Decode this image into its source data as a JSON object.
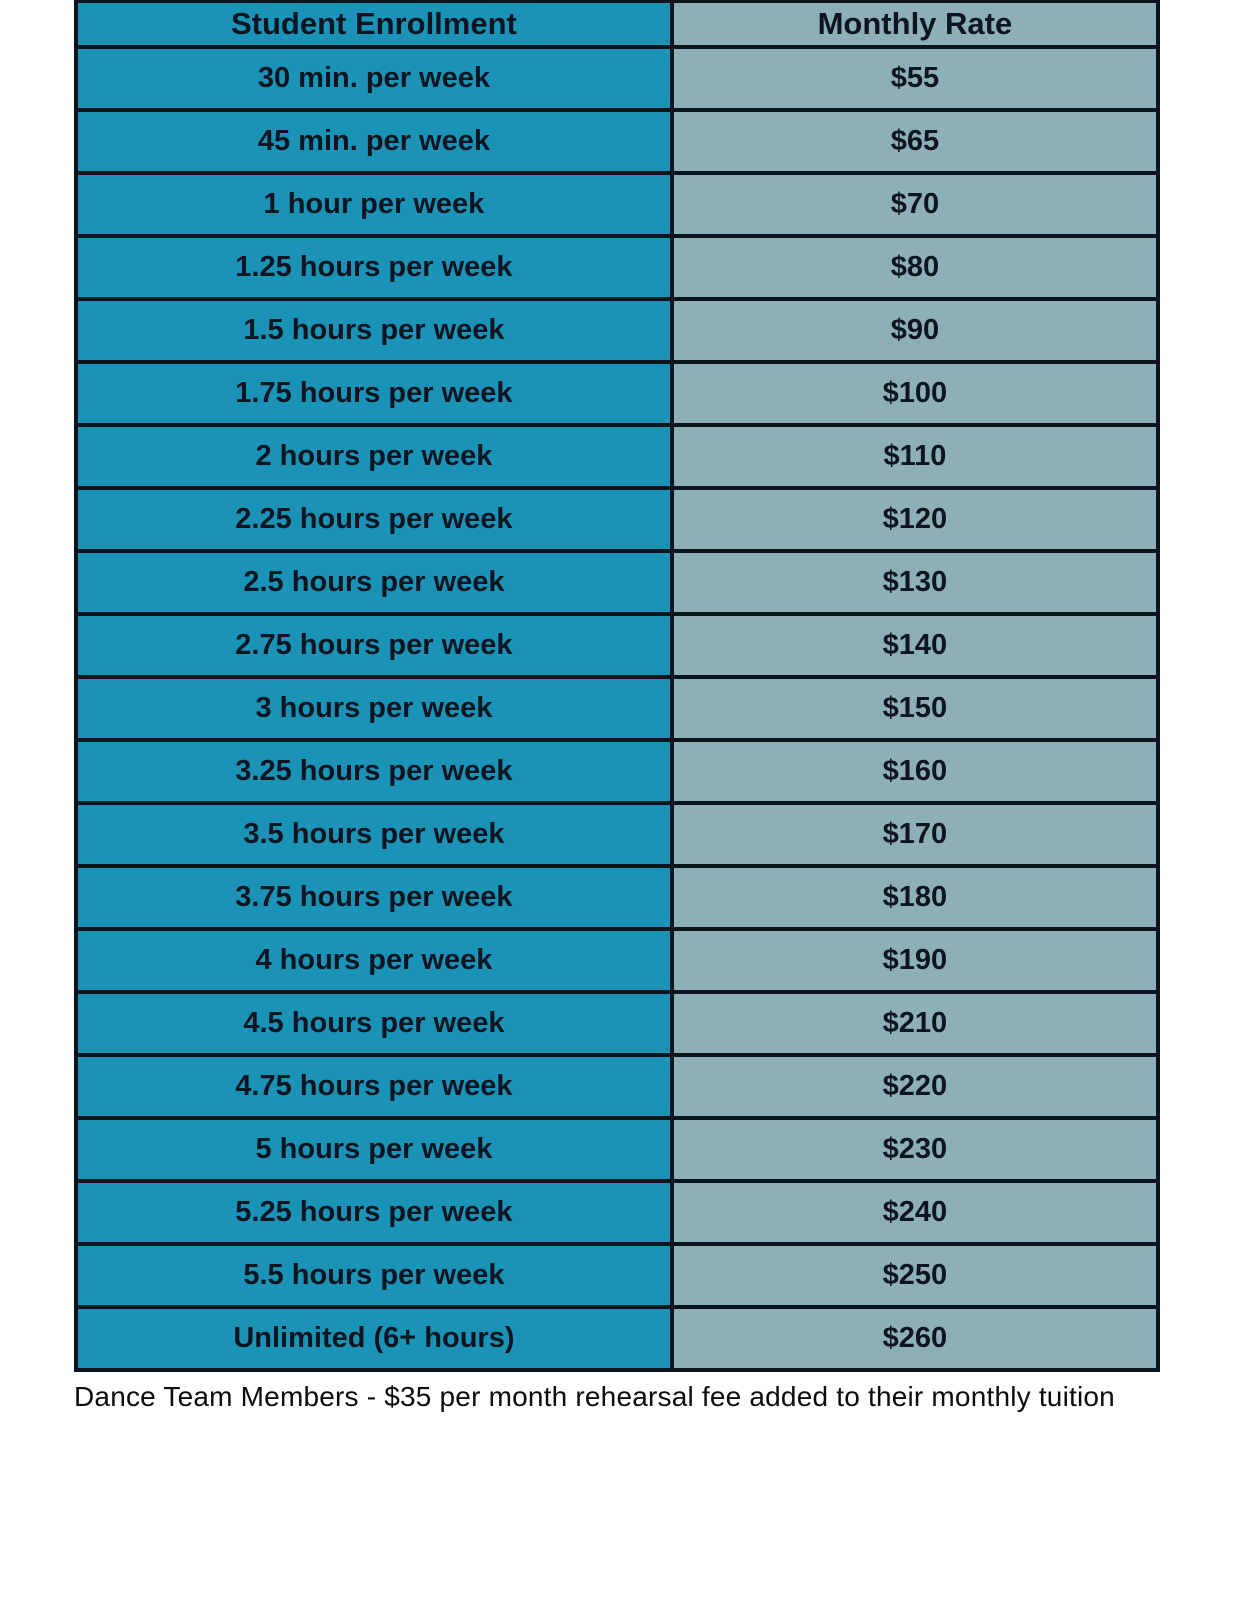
{
  "table": {
    "columns": [
      {
        "label": "Student Enrollment"
      },
      {
        "label": "Monthly Rate"
      }
    ],
    "rows": [
      {
        "enrollment": "30 min. per week",
        "rate": "$55"
      },
      {
        "enrollment": "45 min. per week",
        "rate": "$65"
      },
      {
        "enrollment": "1 hour per week",
        "rate": "$70"
      },
      {
        "enrollment": "1.25 hours per week",
        "rate": "$80"
      },
      {
        "enrollment": "1.5 hours per week",
        "rate": "$90"
      },
      {
        "enrollment": "1.75 hours per week",
        "rate": "$100"
      },
      {
        "enrollment": "2 hours per week",
        "rate": "$110"
      },
      {
        "enrollment": "2.25 hours per week",
        "rate": "$120"
      },
      {
        "enrollment": "2.5 hours per week",
        "rate": "$130"
      },
      {
        "enrollment": "2.75 hours per week",
        "rate": "$140"
      },
      {
        "enrollment": "3 hours per week",
        "rate": "$150"
      },
      {
        "enrollment": "3.25 hours per week",
        "rate": "$160"
      },
      {
        "enrollment": "3.5 hours per week",
        "rate": "$170"
      },
      {
        "enrollment": "3.75 hours per week",
        "rate": "$180"
      },
      {
        "enrollment": "4 hours per week",
        "rate": "$190"
      },
      {
        "enrollment": "4.5 hours per week",
        "rate": "$210"
      },
      {
        "enrollment": "4.75 hours per week",
        "rate": "$220"
      },
      {
        "enrollment": "5 hours per week",
        "rate": "$230"
      },
      {
        "enrollment": "5.25 hours per week",
        "rate": "$240"
      },
      {
        "enrollment": "5.5 hours per week",
        "rate": "$250"
      },
      {
        "enrollment": "Unlimited (6+ hours)",
        "rate": "$260"
      }
    ],
    "colors": {
      "enrollment_column_bg": "#1b93b6",
      "rate_column_bg": "#8dafb7",
      "border": "#0c141d",
      "cell_text": "#0e1520"
    }
  },
  "footer_note": "Dance Team Members - $35 per month rehearsal fee added to their monthly tuition"
}
